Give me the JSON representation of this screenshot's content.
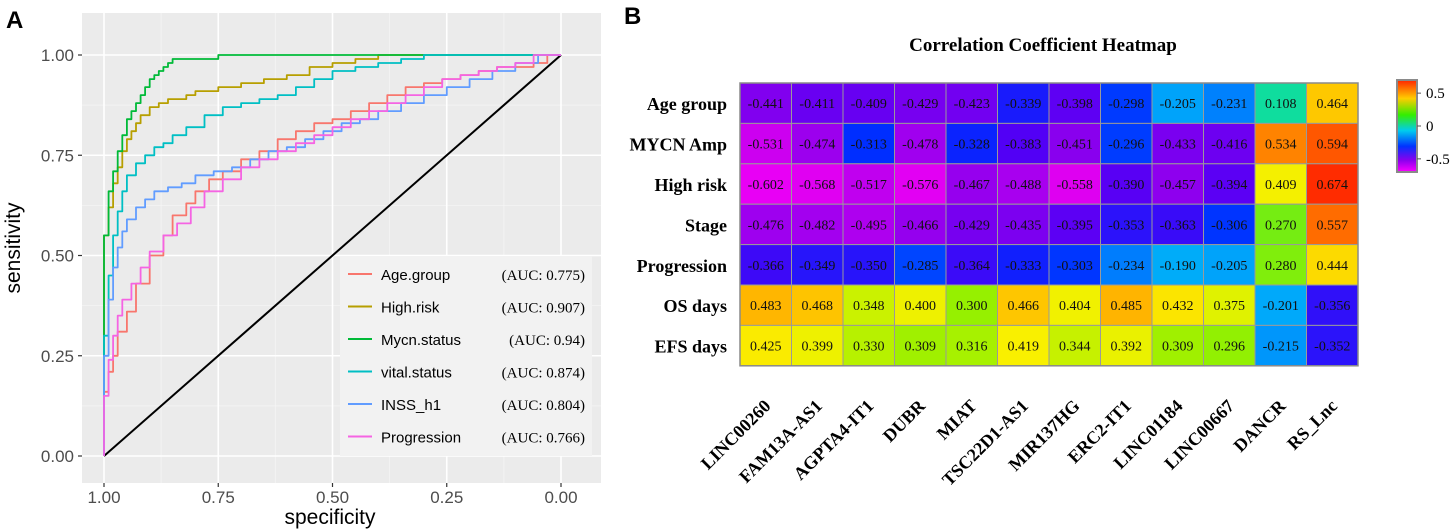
{
  "panel_labels": {
    "a": "A",
    "b": "B"
  },
  "chart_data": [
    {
      "type": "line",
      "title": "",
      "xlabel": "specificity",
      "ylabel": "sensitivity",
      "x_reversed": true,
      "xlim": [
        1.0,
        0.0
      ],
      "ylim": [
        0.0,
        1.0
      ],
      "x_ticks": [
        "1.00",
        "0.75",
        "0.50",
        "0.25",
        "0.00"
      ],
      "y_ticks": [
        "0.00",
        "0.25",
        "0.50",
        "0.75",
        "1.00"
      ],
      "x_tick_values": [
        1.0,
        0.75,
        0.5,
        0.25,
        0.0
      ],
      "y_tick_values": [
        0.0,
        0.25,
        0.5,
        0.75,
        1.0
      ],
      "grid": true,
      "legend_position": "bottom-right",
      "diagonal": {
        "from": [
          1.0,
          0.0
        ],
        "to": [
          0.0,
          1.0
        ],
        "color": "#000000"
      },
      "series": [
        {
          "name": "Age.group",
          "auc": "(AUC: 0.775)",
          "color": "#F8766D",
          "x": [
            1.0,
            0.99,
            0.98,
            0.97,
            0.95,
            0.93,
            0.9,
            0.87,
            0.85,
            0.82,
            0.8,
            0.77,
            0.74,
            0.7,
            0.66,
            0.62,
            0.58,
            0.54,
            0.5,
            0.46,
            0.42,
            0.38,
            0.34,
            0.3,
            0.26,
            0.22,
            0.18,
            0.14,
            0.1,
            0.06,
            0.03,
            0.0
          ],
          "y": [
            0.0,
            0.16,
            0.21,
            0.25,
            0.31,
            0.36,
            0.43,
            0.5,
            0.55,
            0.6,
            0.63,
            0.66,
            0.69,
            0.71,
            0.74,
            0.76,
            0.79,
            0.81,
            0.83,
            0.84,
            0.86,
            0.88,
            0.9,
            0.92,
            0.93,
            0.94,
            0.95,
            0.96,
            0.97,
            0.97,
            0.98,
            1.0
          ]
        },
        {
          "name": "High.risk",
          "auc": "(AUC: 0.907)",
          "color": "#B79F00",
          "x": [
            1.0,
            1.0,
            0.99,
            0.98,
            0.97,
            0.96,
            0.95,
            0.94,
            0.93,
            0.92,
            0.9,
            0.88,
            0.86,
            0.84,
            0.82,
            0.8,
            0.75,
            0.7,
            0.65,
            0.6,
            0.55,
            0.5,
            0.45,
            0.4,
            0.35,
            0.3,
            0.25,
            0.2,
            0.1,
            0.0
          ],
          "y": [
            0.0,
            0.45,
            0.55,
            0.62,
            0.68,
            0.72,
            0.76,
            0.79,
            0.81,
            0.83,
            0.85,
            0.87,
            0.88,
            0.89,
            0.89,
            0.9,
            0.91,
            0.92,
            0.93,
            0.94,
            0.95,
            0.97,
            0.98,
            0.99,
            1.0,
            1.0,
            1.0,
            1.0,
            1.0,
            1.0
          ]
        },
        {
          "name": "Mycn.status",
          "auc": "(AUC: 0.94)",
          "color": "#00BA38",
          "x": [
            1.0,
            1.0,
            0.99,
            0.98,
            0.97,
            0.96,
            0.95,
            0.94,
            0.93,
            0.92,
            0.91,
            0.9,
            0.89,
            0.88,
            0.87,
            0.86,
            0.85,
            0.84,
            0.82,
            0.8,
            0.75,
            0.7,
            0.6,
            0.5,
            0.4,
            0.3,
            0.2,
            0.1,
            0.0
          ],
          "y": [
            0.0,
            0.4,
            0.55,
            0.66,
            0.71,
            0.76,
            0.8,
            0.84,
            0.86,
            0.88,
            0.9,
            0.92,
            0.94,
            0.95,
            0.96,
            0.97,
            0.98,
            0.99,
            0.99,
            0.99,
            0.99,
            1.0,
            1.0,
            1.0,
            1.0,
            1.0,
            1.0,
            1.0,
            1.0
          ]
        },
        {
          "name": "vital.status",
          "auc": "(AUC: 0.874)",
          "color": "#00BFC4",
          "x": [
            1.0,
            0.99,
            0.98,
            0.97,
            0.96,
            0.95,
            0.93,
            0.91,
            0.89,
            0.87,
            0.85,
            0.82,
            0.78,
            0.74,
            0.7,
            0.66,
            0.62,
            0.58,
            0.54,
            0.5,
            0.45,
            0.4,
            0.35,
            0.3,
            0.25,
            0.2,
            0.1,
            0.0
          ],
          "y": [
            0.0,
            0.3,
            0.45,
            0.55,
            0.61,
            0.66,
            0.7,
            0.73,
            0.75,
            0.77,
            0.78,
            0.8,
            0.82,
            0.85,
            0.87,
            0.88,
            0.89,
            0.9,
            0.92,
            0.94,
            0.96,
            0.97,
            0.98,
            0.99,
            1.0,
            1.0,
            1.0,
            1.0
          ]
        },
        {
          "name": "INSS_h1",
          "auc": "(AUC: 0.804)",
          "color": "#619CFF",
          "x": [
            1.0,
            0.99,
            0.98,
            0.97,
            0.96,
            0.95,
            0.93,
            0.91,
            0.89,
            0.86,
            0.83,
            0.8,
            0.76,
            0.72,
            0.68,
            0.64,
            0.6,
            0.56,
            0.52,
            0.48,
            0.44,
            0.4,
            0.35,
            0.3,
            0.25,
            0.2,
            0.15,
            0.1,
            0.05,
            0.0
          ],
          "y": [
            0.0,
            0.25,
            0.39,
            0.47,
            0.52,
            0.56,
            0.59,
            0.62,
            0.64,
            0.66,
            0.67,
            0.68,
            0.7,
            0.71,
            0.72,
            0.74,
            0.76,
            0.77,
            0.79,
            0.81,
            0.83,
            0.84,
            0.86,
            0.88,
            0.9,
            0.92,
            0.94,
            0.96,
            0.98,
            1.0
          ]
        },
        {
          "name": "Progression",
          "auc": "(AUC: 0.766)",
          "color": "#F564E3",
          "x": [
            1.0,
            0.99,
            0.98,
            0.97,
            0.96,
            0.94,
            0.92,
            0.9,
            0.87,
            0.84,
            0.81,
            0.78,
            0.74,
            0.7,
            0.66,
            0.62,
            0.58,
            0.54,
            0.5,
            0.46,
            0.42,
            0.38,
            0.34,
            0.3,
            0.26,
            0.22,
            0.18,
            0.14,
            0.1,
            0.06,
            0.0
          ],
          "y": [
            0.0,
            0.15,
            0.24,
            0.3,
            0.35,
            0.39,
            0.43,
            0.47,
            0.51,
            0.55,
            0.58,
            0.62,
            0.66,
            0.69,
            0.72,
            0.74,
            0.76,
            0.78,
            0.8,
            0.82,
            0.84,
            0.86,
            0.88,
            0.9,
            0.92,
            0.94,
            0.95,
            0.96,
            0.97,
            0.98,
            1.0
          ]
        }
      ]
    },
    {
      "type": "heatmap",
      "title": "Correlation Coefficient Heatmap",
      "rows": [
        "Age group",
        "MYCN Amp",
        "High risk",
        "Stage",
        "Progression",
        "OS days",
        "EFS days"
      ],
      "columns": [
        "LINC00260",
        "FAM13A-AS1",
        "AGPTA4-IT1",
        "DUBR",
        "MIAT",
        "TSC22D1-AS1",
        "MIR137HG",
        "ERC2-IT1",
        "LINC01184",
        "LINC00667",
        "DANCR",
        "RS_Lnc"
      ],
      "values": [
        [
          -0.441,
          -0.411,
          -0.409,
          -0.429,
          -0.423,
          -0.339,
          -0.398,
          -0.298,
          -0.205,
          -0.231,
          0.108,
          0.464
        ],
        [
          -0.531,
          -0.474,
          -0.313,
          -0.478,
          -0.328,
          -0.383,
          -0.451,
          -0.296,
          -0.433,
          -0.416,
          0.534,
          0.594
        ],
        [
          -0.602,
          -0.568,
          -0.517,
          -0.576,
          -0.467,
          -0.488,
          -0.558,
          -0.39,
          -0.457,
          -0.394,
          0.409,
          0.674
        ],
        [
          -0.476,
          -0.482,
          -0.495,
          -0.466,
          -0.429,
          -0.435,
          -0.395,
          -0.353,
          -0.363,
          -0.306,
          0.27,
          0.557
        ],
        [
          -0.366,
          -0.349,
          -0.35,
          -0.285,
          -0.364,
          -0.333,
          -0.303,
          -0.234,
          -0.19,
          -0.205,
          0.28,
          0.444
        ],
        [
          0.483,
          0.468,
          0.348,
          0.4,
          0.3,
          0.466,
          0.404,
          0.485,
          0.432,
          0.375,
          -0.201,
          -0.356
        ],
        [
          0.425,
          0.399,
          0.33,
          0.309,
          0.316,
          0.419,
          0.344,
          0.392,
          0.309,
          0.296,
          -0.215,
          -0.352
        ]
      ],
      "value_labels": [
        [
          "-0.441",
          "-0.411",
          "-0.409",
          "-0.429",
          "-0.423",
          "-0.339",
          "-0.398",
          "-0.298",
          "-0.205",
          "-0.231",
          "0.108",
          "0.464"
        ],
        [
          "-0.531",
          "-0.474",
          "-0.313",
          "-0.478",
          "-0.328",
          "-0.383",
          "-0.451",
          "-0.296",
          "-0.433",
          "-0.416",
          "0.534",
          "0.594"
        ],
        [
          "-0.602",
          "-0.568",
          "-0.517",
          "-0.576",
          "-0.467",
          "-0.488",
          "-0.558",
          "-0.390",
          "-0.457",
          "-0.394",
          "0.409",
          "0.674"
        ],
        [
          "-0.476",
          "-0.482",
          "-0.495",
          "-0.466",
          "-0.429",
          "-0.435",
          "-0.395",
          "-0.353",
          "-0.363",
          "-0.306",
          "0.270",
          "0.557"
        ],
        [
          "-0.366",
          "-0.349",
          "-0.350",
          "-0.285",
          "-0.364",
          "-0.333",
          "-0.303",
          "-0.234",
          "-0.190",
          "-0.205",
          "0.280",
          "0.444"
        ],
        [
          "0.483",
          "0.468",
          "0.348",
          "0.400",
          "0.300",
          "0.466",
          "0.404",
          "0.485",
          "0.432",
          "0.375",
          "-0.201",
          "-0.356"
        ],
        [
          "0.425",
          "0.399",
          "0.330",
          "0.309",
          "0.316",
          "0.419",
          "0.344",
          "0.392",
          "0.309",
          "0.296",
          "-0.215",
          "-0.352"
        ]
      ],
      "colorbar": {
        "ticks": [
          "0.5",
          "0",
          "-0.5"
        ],
        "tick_values": [
          0.5,
          0.0,
          -0.5
        ],
        "range": [
          -0.7,
          0.7
        ]
      }
    }
  ]
}
